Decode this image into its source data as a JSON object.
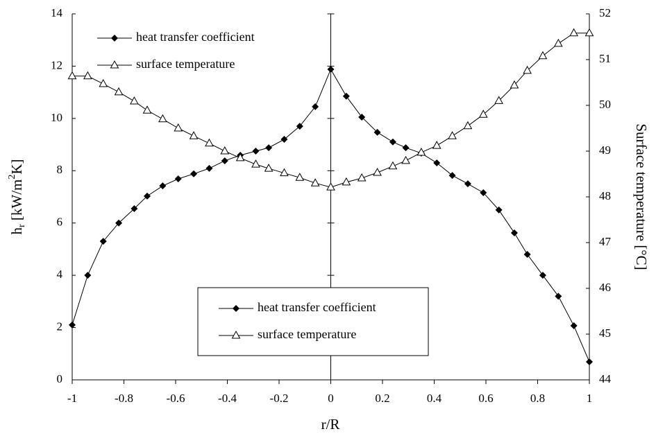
{
  "chart_data": {
    "type": "line",
    "xlabel": "r/R",
    "ylabel_parts": [
      "h",
      "r",
      " [kW/m",
      "2",
      "K]"
    ],
    "y2label": "Surface temperature [°C]",
    "x": [
      -1,
      -0.94,
      -0.88,
      -0.82,
      -0.76,
      -0.71,
      -0.65,
      -0.59,
      -0.53,
      -0.47,
      -0.41,
      -0.35,
      -0.29,
      -0.24,
      -0.18,
      -0.12,
      -0.06,
      0,
      0.06,
      0.12,
      0.18,
      0.24,
      0.29,
      0.35,
      0.41,
      0.47,
      0.53,
      0.59,
      0.65,
      0.71,
      0.76,
      0.82,
      0.88,
      0.94,
      1
    ],
    "series": [
      {
        "name": "heat transfer coefficient",
        "color": "#000000",
        "marker": "diamond",
        "values": [
          2.1,
          4.0,
          5.3,
          6.0,
          6.55,
          7.03,
          7.42,
          7.69,
          7.88,
          8.09,
          8.38,
          8.59,
          8.75,
          8.88,
          9.2,
          9.7,
          10.45,
          11.88,
          10.85,
          10.05,
          9.47,
          9.1,
          8.88,
          8.67,
          8.3,
          7.82,
          7.5,
          7.16,
          6.5,
          5.62,
          4.8,
          4.0,
          3.2,
          2.07,
          0.69
        ]
      },
      {
        "name": "surface temperature",
        "color": "#000000",
        "marker": "triangle",
        "axis": "y2",
        "values": [
          50.64,
          50.64,
          50.47,
          50.29,
          50.09,
          49.89,
          49.7,
          49.5,
          49.33,
          49.17,
          49.0,
          48.85,
          48.71,
          48.62,
          48.52,
          48.42,
          48.3,
          48.21,
          48.32,
          48.41,
          48.53,
          48.67,
          48.79,
          48.97,
          49.12,
          49.33,
          49.55,
          49.8,
          50.1,
          50.44,
          50.76,
          51.08,
          51.35,
          51.58,
          51.58
        ]
      }
    ],
    "xlim": [
      -1,
      1
    ],
    "xticks": [
      -1,
      -0.8,
      -0.6,
      -0.4,
      -0.2,
      0,
      0.2,
      0.4,
      0.6,
      0.8,
      1
    ],
    "ylim": [
      0,
      14
    ],
    "yticks": [
      0,
      2,
      4,
      6,
      8,
      10,
      12,
      14
    ],
    "y2lim": [
      44,
      52
    ],
    "y2ticks": [
      44,
      45,
      46,
      47,
      48,
      49,
      50,
      51,
      52
    ],
    "legend": [
      "upper left",
      "lower center"
    ]
  }
}
